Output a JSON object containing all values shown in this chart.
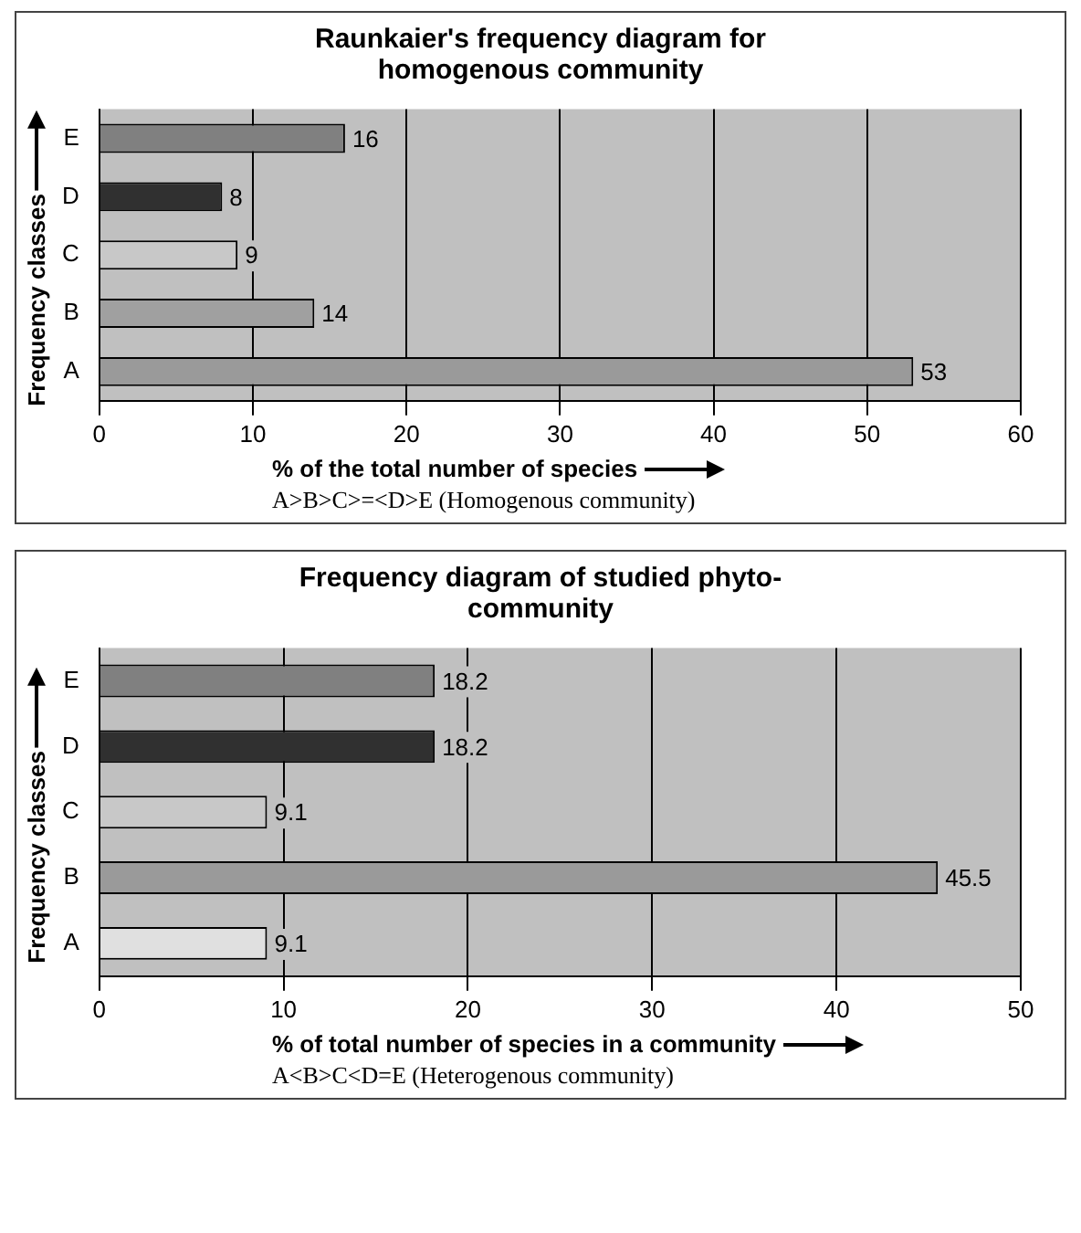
{
  "chart_data": [
    {
      "type": "bar",
      "orientation": "horizontal",
      "title": "Raunkaier's frequency diagram for homogenous community",
      "categories": [
        "E",
        "D",
        "C",
        "B",
        "A"
      ],
      "values": [
        16,
        8,
        9,
        14,
        53
      ],
      "colors": [
        "#808080",
        "#303030",
        "#c8c8c8",
        "#a0a0a0",
        "#9a9a9a"
      ],
      "xlim": [
        0,
        60
      ],
      "xticks": [
        0,
        10,
        20,
        30,
        40,
        50,
        60
      ],
      "xlabel": "% of the total number of species",
      "ylabel": "Frequency classes",
      "grid": "x",
      "data_labels": true,
      "annotations": [
        "A>B>C>=<D>E (Homogenous community)"
      ]
    },
    {
      "type": "bar",
      "orientation": "horizontal",
      "title": "Frequency diagram of studied phyto-community",
      "categories": [
        "E",
        "D",
        "C",
        "B",
        "A"
      ],
      "values": [
        18.2,
        18.2,
        9.1,
        45.5,
        9.1
      ],
      "colors": [
        "#808080",
        "#303030",
        "#c8c8c8",
        "#9a9a9a",
        "#e0e0e0"
      ],
      "xlim": [
        0,
        50
      ],
      "xticks": [
        0,
        10,
        20,
        30,
        40,
        50
      ],
      "xlabel": "% of total number of species in a community",
      "ylabel": "Frequency classes",
      "grid": "x",
      "data_labels": true,
      "annotations": [
        "A<B>C<D=E (Heterogenous community)"
      ]
    }
  ]
}
